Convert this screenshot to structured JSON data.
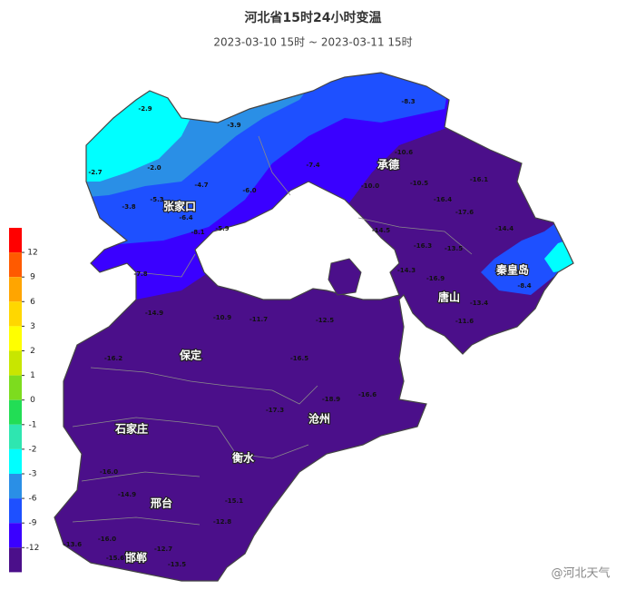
{
  "header": {
    "title": "河北省15时24小时变温",
    "subtitle": "2023-03-10 15时 ~ 2023-03-11 15时"
  },
  "legend": {
    "colors": [
      "#ff0000",
      "#ff5a00",
      "#ffa500",
      "#ffd700",
      "#ffff00",
      "#c8e600",
      "#7ddc1e",
      "#22dd55",
      "#2ee6b0",
      "#00ffff",
      "#2a8fe6",
      "#1e50ff",
      "#3a00ff",
      "#4b0f8a"
    ],
    "ticks": [
      12,
      9,
      6,
      3,
      2,
      1,
      0,
      -1,
      -2,
      -3,
      -6,
      -9,
      -12
    ]
  },
  "cities": [
    "张家口",
    "承德",
    "秦皇岛",
    "唐山",
    "保定",
    "沧州",
    "石家庄",
    "衡水",
    "邢台",
    "邯郸"
  ],
  "stations": [
    -2.9,
    -3.9,
    -8.3,
    -2.7,
    {
      "value": -2,
      "label": "-2.0"
    },
    -4.7,
    {
      "value": -6,
      "label": "-6.0"
    },
    -7.4,
    -10.6,
    {
      "value": -10,
      "label": "-10.0"
    },
    -5.3,
    -3.8,
    -6.4,
    -5.9,
    -8.1,
    -10.5,
    -16.1,
    -16.4,
    -17.6,
    -14.5,
    -14.4,
    -13.5,
    -16.3,
    -14.3,
    -16.9,
    -8.4,
    -11.6,
    -13.4,
    -7.8,
    -14.9,
    -10.9,
    -11.7,
    -12.5,
    -16.2,
    -16.5,
    -18.9,
    -16.6,
    -17.3,
    {
      "value": -16,
      "label": "-16.0"
    },
    -14.9,
    {
      "value": -16,
      "label": "-16.0"
    },
    -13.6,
    -15.6,
    -13.5,
    -12.7,
    -15.1,
    -12.8
  ],
  "watermark": "@河北天气"
}
